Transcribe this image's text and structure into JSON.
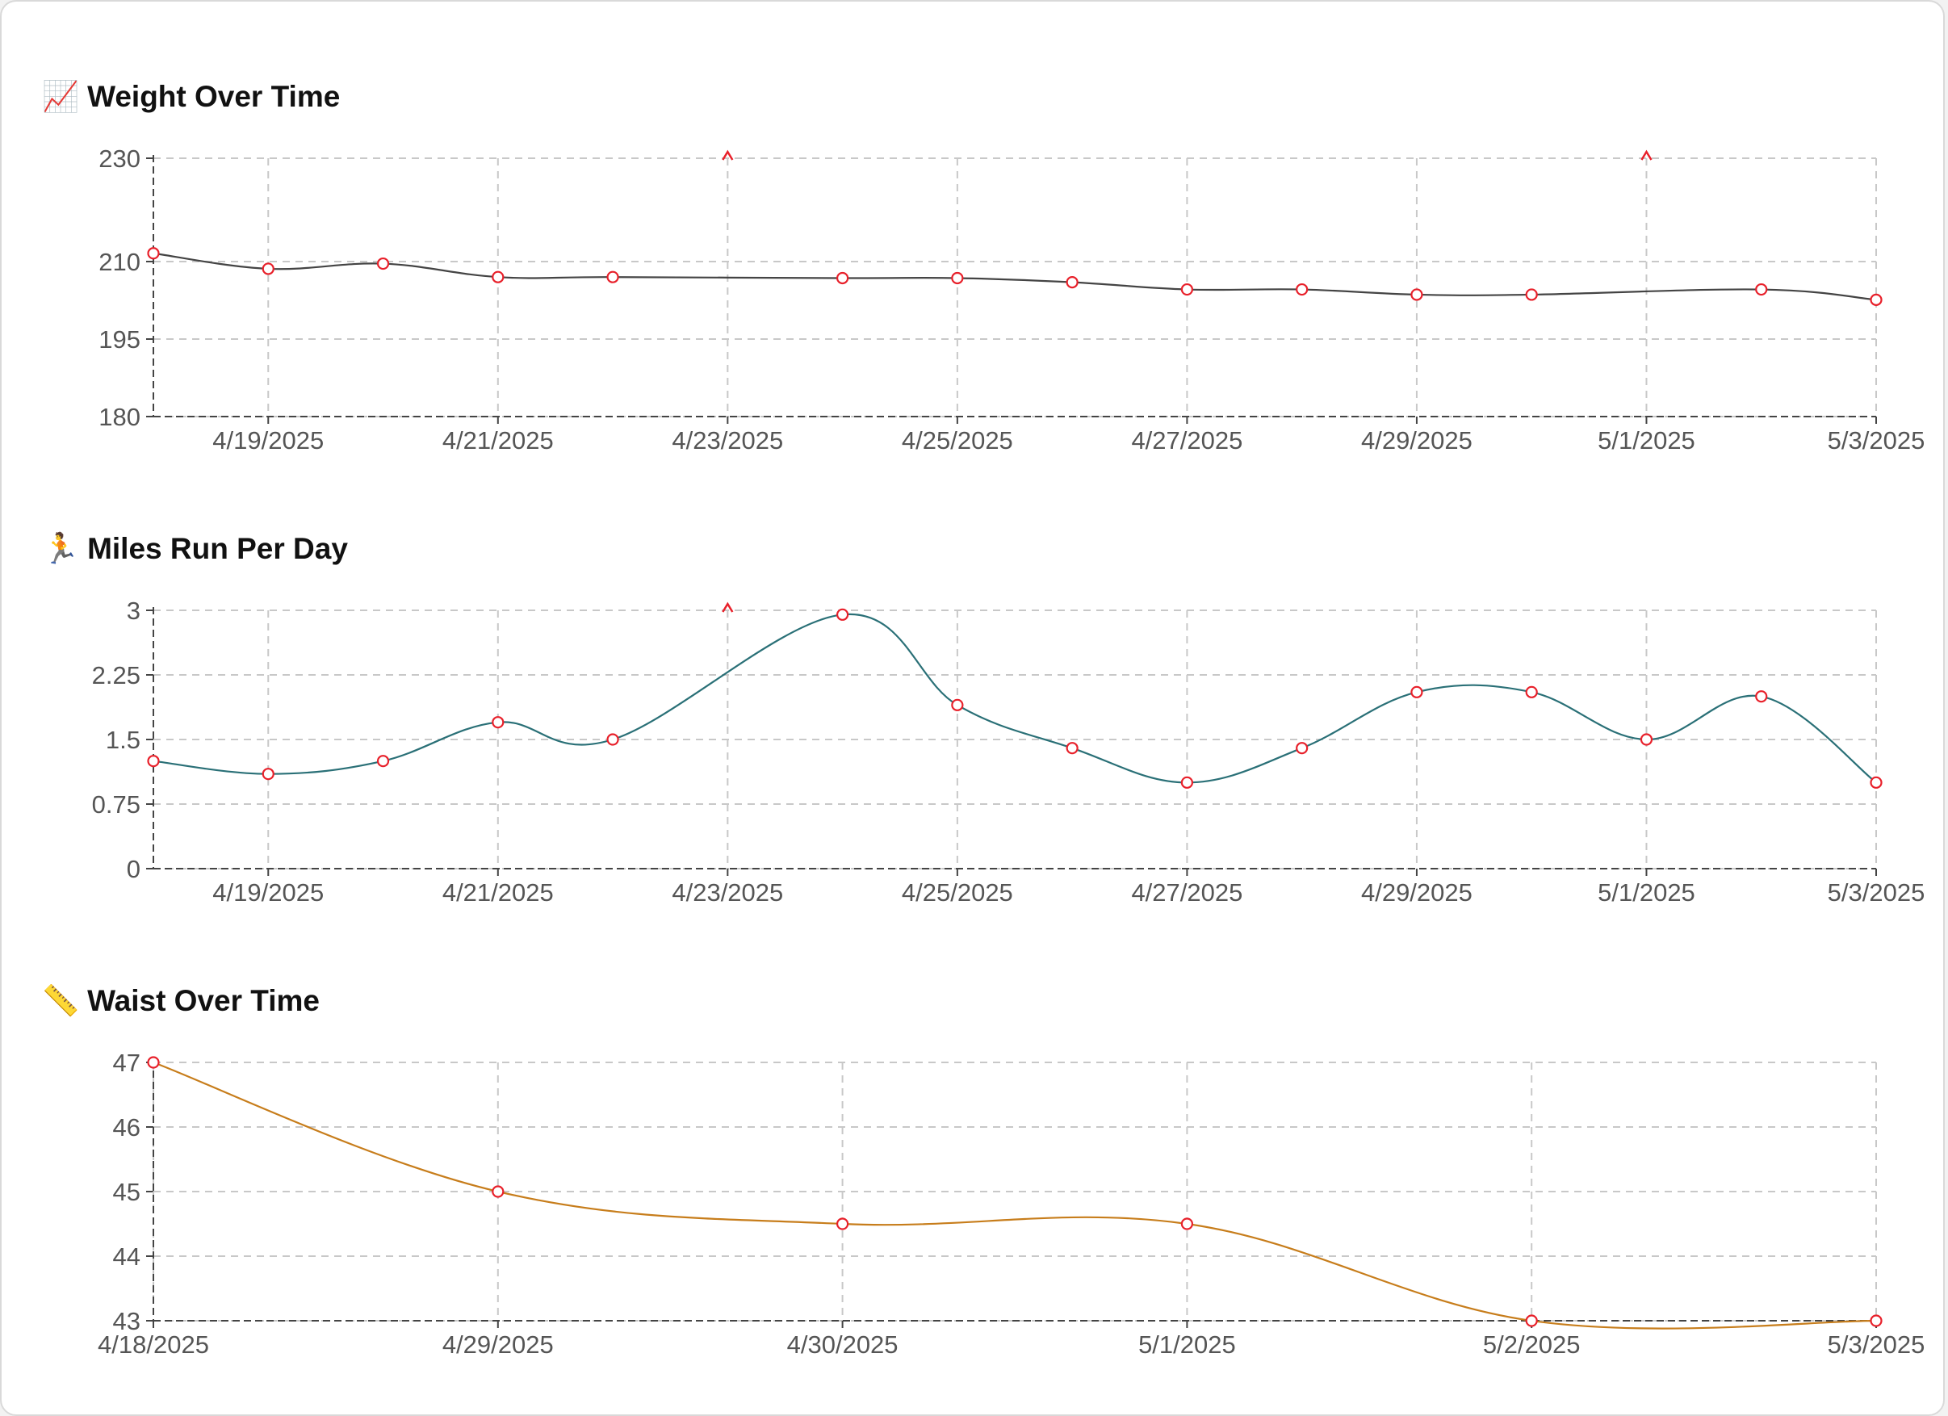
{
  "chart_data": [
    {
      "type": "line",
      "title": "Weight Over Time",
      "title_icon": "📈",
      "title_icon_name": "chart-increasing-icon",
      "line_color": "#444444",
      "point_color": "#e8202a",
      "x": [
        "4/18/2025",
        "4/19/2025",
        "4/20/2025",
        "4/21/2025",
        "4/22/2025",
        "4/23/2025",
        "4/24/2025",
        "4/25/2025",
        "4/26/2025",
        "4/27/2025",
        "4/28/2025",
        "4/29/2025",
        "4/30/2025",
        "5/1/2025",
        "5/2/2025",
        "5/3/2025"
      ],
      "x_ticks": [
        "4/19/2025",
        "4/21/2025",
        "4/23/2025",
        "4/25/2025",
        "4/27/2025",
        "4/29/2025",
        "5/1/2025",
        "5/3/2025"
      ],
      "y_ticks": [
        180,
        195,
        210,
        230
      ],
      "ylim": [
        180,
        230
      ],
      "series": [
        {
          "name": "Weight",
          "values": [
            211.6,
            208.6,
            209.6,
            207,
            207,
            null,
            206.8,
            206.8,
            206,
            204.6,
            204.6,
            203.6,
            203.6,
            null,
            204.6,
            202.6
          ]
        }
      ]
    },
    {
      "type": "line",
      "title": "Miles Run Per Day",
      "title_icon": "🏃",
      "title_icon_name": "runner-icon",
      "line_color": "#2a7077",
      "point_color": "#e8202a",
      "x": [
        "4/18/2025",
        "4/19/2025",
        "4/20/2025",
        "4/21/2025",
        "4/22/2025",
        "4/23/2025",
        "4/24/2025",
        "4/25/2025",
        "4/26/2025",
        "4/27/2025",
        "4/28/2025",
        "4/29/2025",
        "4/30/2025",
        "5/1/2025",
        "5/2/2025",
        "5/3/2025"
      ],
      "x_ticks": [
        "4/19/2025",
        "4/21/2025",
        "4/23/2025",
        "4/25/2025",
        "4/27/2025",
        "4/29/2025",
        "5/1/2025",
        "5/3/2025"
      ],
      "y_ticks": [
        0,
        0.75,
        1.5,
        2.25,
        3
      ],
      "ylim": [
        0,
        3
      ],
      "series": [
        {
          "name": "Miles",
          "values": [
            1.25,
            1.1,
            1.25,
            1.7,
            1.5,
            null,
            2.95,
            1.9,
            1.4,
            1.0,
            1.4,
            2.05,
            2.05,
            1.5,
            2.0,
            1.0
          ]
        }
      ]
    },
    {
      "type": "line",
      "title": "Waist Over Time",
      "title_icon": "📏",
      "title_icon_name": "ruler-icon",
      "line_color": "#c77d1b",
      "point_color": "#e8202a",
      "x": [
        "4/18/2025",
        "4/29/2025",
        "4/30/2025",
        "5/1/2025",
        "5/2/2025",
        "5/3/2025"
      ],
      "x_ticks": [
        "4/18/2025",
        "4/29/2025",
        "4/30/2025",
        "5/1/2025",
        "5/2/2025",
        "5/3/2025"
      ],
      "y_ticks": [
        43,
        44,
        45,
        46,
        47
      ],
      "ylim": [
        43,
        47
      ],
      "series": [
        {
          "name": "Waist",
          "values": [
            47,
            45,
            44.5,
            44.5,
            43,
            43
          ]
        }
      ]
    }
  ]
}
